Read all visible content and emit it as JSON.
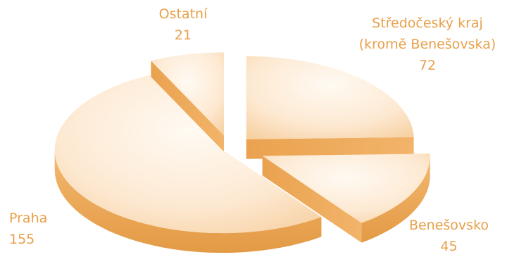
{
  "chart_data": {
    "type": "pie",
    "style": "3d-exploded",
    "title": "",
    "slices": [
      {
        "label": "Středočeský kraj (kromě Benešovska)",
        "label_lines": [
          "Středočeský kraj",
          "(kromě Benešovska)"
        ],
        "value": 72
      },
      {
        "label": "Benešovsko",
        "label_lines": [
          "Benešovsko"
        ],
        "value": 45
      },
      {
        "label": "Praha",
        "label_lines": [
          "Praha"
        ],
        "value": 155
      },
      {
        "label": "Ostatní",
        "label_lines": [
          "Ostatní"
        ],
        "value": 21
      }
    ],
    "colors": {
      "top_light": "#fffaf3",
      "top_dark": "#f6cf9f",
      "side": "#eea859",
      "side_dark": "#d98a2f",
      "label": "#e8a04a"
    }
  }
}
